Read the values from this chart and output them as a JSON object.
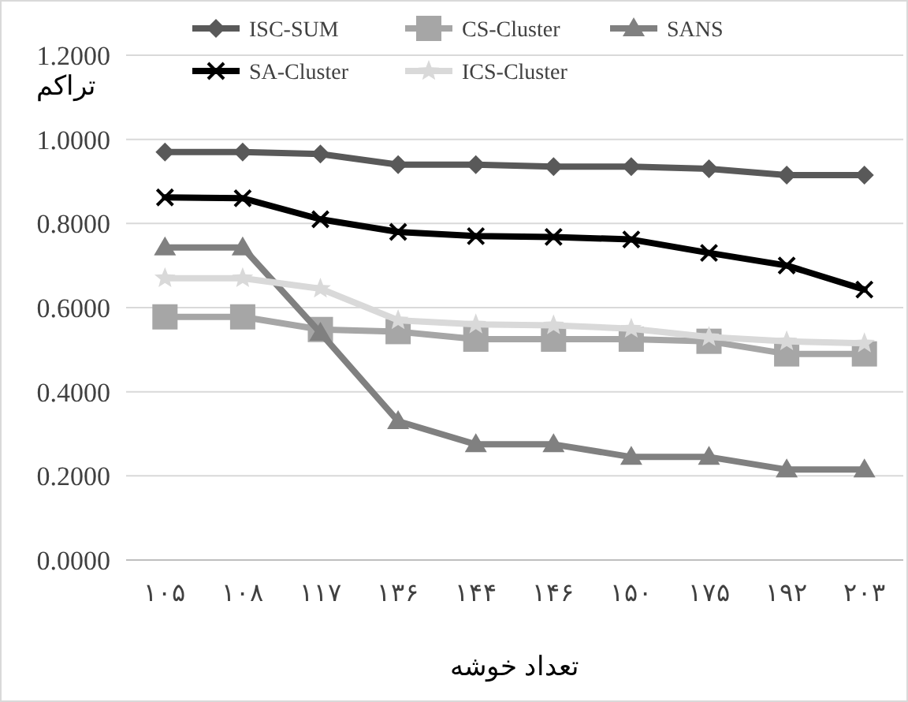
{
  "chart_data": {
    "type": "line",
    "ylabel": "تراکم",
    "xlabel": "تعداد خوشه",
    "categories": [
      "۱۰۵",
      "۱۰۸",
      "۱۱۷",
      "۱۳۶",
      "۱۴۴",
      "۱۴۶",
      "۱۵۰",
      "۱۷۵",
      "۱۹۲",
      "۲۰۳"
    ],
    "series": [
      {
        "name": "ISC-SUM",
        "color": "#595959",
        "marker": "diamond",
        "values": [
          0.97,
          0.97,
          0.965,
          0.94,
          0.94,
          0.935,
          0.935,
          0.93,
          0.915,
          0.915
        ]
      },
      {
        "name": "CS-Cluster",
        "color": "#a6a6a6",
        "marker": "square",
        "values": [
          0.578,
          0.578,
          0.548,
          0.543,
          0.525,
          0.525,
          0.525,
          0.52,
          0.49,
          0.49
        ]
      },
      {
        "name": "SANS",
        "color": "#808080",
        "marker": "triangle",
        "values": [
          0.743,
          0.743,
          0.54,
          0.33,
          0.275,
          0.275,
          0.245,
          0.245,
          0.215,
          0.215
        ]
      },
      {
        "name": "SA-Cluster",
        "color": "#000000",
        "marker": "cross",
        "values": [
          0.862,
          0.86,
          0.81,
          0.78,
          0.77,
          0.768,
          0.762,
          0.73,
          0.7,
          0.643
        ]
      },
      {
        "name": "ICS-Cluster",
        "color": "#d9d9d9",
        "marker": "star",
        "values": [
          0.67,
          0.67,
          0.645,
          0.57,
          0.56,
          0.558,
          0.55,
          0.53,
          0.52,
          0.515
        ]
      }
    ],
    "ylim": [
      0,
      1.2
    ],
    "yticks": [
      {
        "value": 0,
        "label": "0.0000"
      },
      {
        "value": 0.2,
        "label": "0.2000"
      },
      {
        "value": 0.4,
        "label": "0.4000"
      },
      {
        "value": 0.6,
        "label": "0.6000"
      },
      {
        "value": 0.8,
        "label": "0.8000"
      },
      {
        "value": 1.0,
        "label": "1.0000"
      },
      {
        "value": 1.2,
        "label": "1.2000"
      }
    ],
    "grid": "y",
    "legend": "top"
  }
}
